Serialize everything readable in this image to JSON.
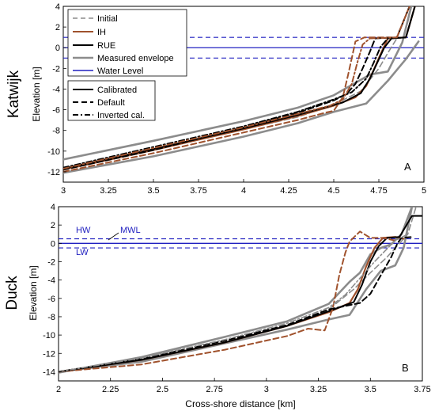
{
  "chart_data": [
    {
      "type": "line",
      "site": "Katwijk",
      "panel_label": "A",
      "ylabel": "Elevation [m]",
      "xlabel": "",
      "xlim": [
        3,
        5
      ],
      "ylim": [
        -13,
        4
      ],
      "xticks": [
        "3",
        "3.25",
        "3.5",
        "3.75",
        "4",
        "4.25",
        "4.5",
        "4.75",
        "5"
      ],
      "xtick_values": [
        3,
        3.25,
        3.5,
        3.75,
        4,
        4.25,
        4.5,
        4.75,
        5
      ],
      "yticks": [
        "4",
        "2",
        "0",
        "-2",
        "-4",
        "-6",
        "-8",
        "-10",
        "-12"
      ],
      "ytick_values": [
        4,
        2,
        0,
        -2,
        -4,
        -6,
        -8,
        -10,
        -12
      ],
      "water_levels": {
        "mwl": 0,
        "hw": 1,
        "lw": -1
      },
      "legend_groups": [
        [
          {
            "label": "Initial",
            "color": "#8c8c8c",
            "dash": "dashed"
          },
          {
            "label": "IH",
            "color": "#a0522d",
            "dash": "solid"
          },
          {
            "label": "RUE",
            "color": "#000000",
            "dash": "solid"
          },
          {
            "label": "Measured envelope",
            "color": "#8c8c8c",
            "dash": "solid"
          },
          {
            "label": "Water Level",
            "color": "#2020c0",
            "dash": "solid"
          }
        ],
        [
          {
            "label": "Calibrated",
            "color": "#000000",
            "dash": "solid"
          },
          {
            "label": "Default",
            "color": "#000000",
            "dash": "dashed"
          },
          {
            "label": "Inverted cal.",
            "color": "#000000",
            "dash": "dashdot"
          }
        ]
      ],
      "series": [
        {
          "color": "#8c8c8c",
          "width": 2.6,
          "dash": "solid",
          "points": [
            [
              3,
              -10.8
            ],
            [
              3.5,
              -9.0
            ],
            [
              4.0,
              -7.1
            ],
            [
              4.3,
              -5.8
            ],
            [
              4.5,
              -4.6
            ],
            [
              4.62,
              -3.4
            ],
            [
              4.7,
              -2.6
            ],
            [
              4.8,
              -2.3
            ],
            [
              4.88,
              0.5
            ],
            [
              4.93,
              4
            ]
          ]
        },
        {
          "color": "#8c8c8c",
          "width": 2.6,
          "dash": "solid",
          "points": [
            [
              3,
              -12.1
            ],
            [
              3.5,
              -10.5
            ],
            [
              4.0,
              -8.6
            ],
            [
              4.3,
              -7.3
            ],
            [
              4.5,
              -6.2
            ],
            [
              4.68,
              -5.4
            ],
            [
              4.8,
              -3.2
            ],
            [
              4.9,
              -1.1
            ],
            [
              4.97,
              0.6
            ]
          ]
        },
        {
          "color": "#8c8c8c",
          "width": 1.6,
          "dash": "dashed",
          "points": [
            [
              3,
              -11.7
            ],
            [
              3.5,
              -9.9
            ],
            [
              4.0,
              -7.9
            ],
            [
              4.3,
              -6.7
            ],
            [
              4.5,
              -5.5
            ],
            [
              4.65,
              -4.2
            ],
            [
              4.75,
              -2.0
            ],
            [
              4.8,
              -0.5
            ],
            [
              4.85,
              0.9
            ],
            [
              4.92,
              4
            ]
          ]
        },
        {
          "color": "#a0522d",
          "width": 2.2,
          "dash": "solid",
          "points": [
            [
              3,
              -11.8
            ],
            [
              3.5,
              -9.9
            ],
            [
              4.0,
              -7.9
            ],
            [
              4.3,
              -6.6
            ],
            [
              4.5,
              -5.6
            ],
            [
              4.62,
              -4.8
            ],
            [
              4.68,
              -3.7
            ],
            [
              4.72,
              -2.2
            ],
            [
              4.76,
              -0.6
            ],
            [
              4.8,
              0.9
            ],
            [
              4.9,
              1.0
            ],
            [
              4.95,
              4
            ]
          ]
        },
        {
          "color": "#000000",
          "width": 2.0,
          "dash": "solid",
          "points": [
            [
              3,
              -11.7
            ],
            [
              3.5,
              -9.8
            ],
            [
              4.0,
              -7.8
            ],
            [
              4.3,
              -6.5
            ],
            [
              4.55,
              -5.3
            ],
            [
              4.65,
              -4.4
            ],
            [
              4.7,
              -3.0
            ],
            [
              4.74,
              -1.5
            ],
            [
              4.78,
              0.0
            ],
            [
              4.82,
              0.9
            ],
            [
              4.9,
              1.0
            ],
            [
              4.95,
              4
            ]
          ]
        },
        {
          "color": "#a0522d",
          "width": 2.0,
          "dash": "dashed",
          "points": [
            [
              3,
              -12.0
            ],
            [
              3.5,
              -10.2
            ],
            [
              4.0,
              -8.2
            ],
            [
              4.3,
              -7.0
            ],
            [
              4.45,
              -6.3
            ],
            [
              4.5,
              -6.1
            ],
            [
              4.55,
              -4.8
            ],
            [
              4.58,
              -2.6
            ],
            [
              4.6,
              -1.0
            ],
            [
              4.62,
              0.6
            ],
            [
              4.67,
              1.0
            ],
            [
              4.85,
              1.0
            ],
            [
              4.92,
              4
            ]
          ]
        },
        {
          "color": "#000000",
          "width": 2.0,
          "dash": "dashed",
          "points": [
            [
              3,
              -11.8
            ],
            [
              3.5,
              -9.9
            ],
            [
              4.0,
              -7.7
            ],
            [
              4.3,
              -6.3
            ],
            [
              4.5,
              -5.1
            ],
            [
              4.57,
              -4.5
            ],
            [
              4.62,
              -3.5
            ],
            [
              4.66,
              -2.0
            ],
            [
              4.7,
              -0.4
            ],
            [
              4.73,
              0.9
            ],
            [
              4.85,
              1.0
            ],
            [
              4.92,
              4
            ]
          ]
        },
        {
          "color": "#000000",
          "width": 2.0,
          "dash": "dashdot",
          "points": [
            [
              3,
              -11.6
            ],
            [
              3.5,
              -9.6
            ],
            [
              4.0,
              -7.6
            ],
            [
              4.3,
              -6.2
            ],
            [
              4.5,
              -5.0
            ],
            [
              4.6,
              -4.3
            ],
            [
              4.68,
              -3.0
            ],
            [
              4.72,
              -1.5
            ],
            [
              4.76,
              0.1
            ],
            [
              4.8,
              0.9
            ],
            [
              4.9,
              1.0
            ],
            [
              4.95,
              4
            ]
          ]
        },
        {
          "color": "#a0522d",
          "width": 2.0,
          "dash": "dashdot",
          "points": [
            [
              3,
              -11.7
            ],
            [
              3.5,
              -9.7
            ],
            [
              4.0,
              -7.7
            ],
            [
              4.3,
              -6.4
            ],
            [
              4.48,
              -5.6
            ],
            [
              4.55,
              -5.0
            ],
            [
              4.6,
              -3.5
            ],
            [
              4.63,
              -1.5
            ],
            [
              4.66,
              0.3
            ],
            [
              4.7,
              0.9
            ],
            [
              4.85,
              1.0
            ],
            [
              4.92,
              4
            ]
          ]
        }
      ]
    },
    {
      "type": "line",
      "site": "Duck",
      "panel_label": "B",
      "ylabel": "Elevation [m]",
      "xlabel": "Cross-shore distance [km]",
      "xlim": [
        2,
        3.75
      ],
      "ylim": [
        -15,
        4
      ],
      "xticks": [
        "2",
        "2.25",
        "2.5",
        "2.75",
        "3",
        "3.25",
        "3.5",
        "3.75"
      ],
      "xtick_values": [
        2,
        2.25,
        2.5,
        2.75,
        3,
        3.25,
        3.5,
        3.75
      ],
      "yticks": [
        "4",
        "2",
        "0",
        "-2",
        "-4",
        "-6",
        "-8",
        "-10",
        "-12",
        "-14"
      ],
      "ytick_values": [
        4,
        2,
        0,
        -2,
        -4,
        -6,
        -8,
        -10,
        -12,
        -14
      ],
      "water_levels": {
        "mwl": 0,
        "hw": 0.5,
        "lw": -0.5
      },
      "annotations": {
        "hw": "HW",
        "mwl": "MWL",
        "lw": "LW"
      },
      "series": [
        {
          "color": "#8c8c8c",
          "width": 2.6,
          "dash": "solid",
          "points": [
            [
              2.0,
              -14.1
            ],
            [
              2.4,
              -12.4
            ],
            [
              2.8,
              -10.2
            ],
            [
              3.1,
              -8.5
            ],
            [
              3.3,
              -6.6
            ],
            [
              3.4,
              -4.2
            ],
            [
              3.45,
              -3.2
            ],
            [
              3.5,
              -1.2
            ],
            [
              3.55,
              -0.5
            ],
            [
              3.6,
              -0.1
            ],
            [
              3.65,
              1.0
            ],
            [
              3.7,
              4
            ]
          ]
        },
        {
          "color": "#8c8c8c",
          "width": 2.6,
          "dash": "solid",
          "points": [
            [
              2.0,
              -14.0
            ],
            [
              2.4,
              -12.9
            ],
            [
              2.8,
              -10.9
            ],
            [
              3.1,
              -9.4
            ],
            [
              3.3,
              -8.3
            ],
            [
              3.4,
              -7.8
            ],
            [
              3.48,
              -5.0
            ],
            [
              3.55,
              -3.0
            ],
            [
              3.62,
              -2.4
            ],
            [
              3.66,
              -0.5
            ],
            [
              3.7,
              4
            ]
          ]
        },
        {
          "color": "#8c8c8c",
          "width": 1.6,
          "dash": "dashed",
          "points": [
            [
              2.0,
              -14.0
            ],
            [
              2.4,
              -12.6
            ],
            [
              2.8,
              -10.6
            ],
            [
              3.1,
              -8.9
            ],
            [
              3.3,
              -7.2
            ],
            [
              3.42,
              -5.0
            ],
            [
              3.5,
              -3.2
            ],
            [
              3.58,
              -1.5
            ],
            [
              3.64,
              0.0
            ],
            [
              3.68,
              1.0
            ],
            [
              3.72,
              4
            ]
          ]
        },
        {
          "color": "#a0522d",
          "width": 2.2,
          "dash": "solid",
          "points": [
            [
              2.0,
              -14.0
            ],
            [
              2.4,
              -12.7
            ],
            [
              2.8,
              -10.8
            ],
            [
              3.1,
              -9.0
            ],
            [
              3.3,
              -7.5
            ],
            [
              3.4,
              -6.5
            ],
            [
              3.44,
              -5.0
            ],
            [
              3.48,
              -2.5
            ],
            [
              3.52,
              -0.5
            ],
            [
              3.56,
              0.6
            ],
            [
              3.62,
              0.7
            ],
            [
              3.66,
              0.5
            ]
          ]
        },
        {
          "color": "#000000",
          "width": 2.0,
          "dash": "solid",
          "points": [
            [
              2.0,
              -14.0
            ],
            [
              2.4,
              -12.7
            ],
            [
              2.8,
              -10.8
            ],
            [
              3.1,
              -9.0
            ],
            [
              3.3,
              -7.4
            ],
            [
              3.42,
              -6.4
            ],
            [
              3.46,
              -4.5
            ],
            [
              3.5,
              -2.0
            ],
            [
              3.54,
              -0.3
            ],
            [
              3.58,
              0.6
            ],
            [
              3.64,
              0.7
            ],
            [
              3.7,
              3.0
            ],
            [
              3.75,
              3.0
            ]
          ]
        },
        {
          "color": "#a0522d",
          "width": 2.0,
          "dash": "dashed",
          "points": [
            [
              2.0,
              -14.0
            ],
            [
              2.4,
              -13.2
            ],
            [
              2.8,
              -11.6
            ],
            [
              3.1,
              -10.1
            ],
            [
              3.2,
              -9.3
            ],
            [
              3.28,
              -9.5
            ],
            [
              3.32,
              -7.0
            ],
            [
              3.35,
              -3.5
            ],
            [
              3.38,
              -1.0
            ],
            [
              3.4,
              0.2
            ],
            [
              3.45,
              1.3
            ],
            [
              3.5,
              0.6
            ],
            [
              3.56,
              0.6
            ],
            [
              3.62,
              0.3
            ]
          ]
        },
        {
          "color": "#000000",
          "width": 2.0,
          "dash": "dashed",
          "points": [
            [
              2.0,
              -14.0
            ],
            [
              2.4,
              -12.6
            ],
            [
              2.8,
              -10.6
            ],
            [
              3.1,
              -8.9
            ],
            [
              3.3,
              -7.2
            ],
            [
              3.45,
              -6.5
            ],
            [
              3.5,
              -5.5
            ],
            [
              3.55,
              -3.5
            ],
            [
              3.6,
              -1.5
            ],
            [
              3.63,
              0.0
            ],
            [
              3.65,
              0.6
            ],
            [
              3.7,
              0.7
            ]
          ]
        },
        {
          "color": "#8c8c8c",
          "width": 1.6,
          "dash": "dashdot",
          "points": [
            [
              2.0,
              -14.0
            ],
            [
              2.4,
              -12.5
            ],
            [
              2.8,
              -10.5
            ],
            [
              3.1,
              -8.7
            ],
            [
              3.3,
              -7.0
            ],
            [
              3.38,
              -5.6
            ],
            [
              3.45,
              -3.8
            ],
            [
              3.52,
              -2.0
            ],
            [
              3.58,
              -0.6
            ],
            [
              3.62,
              0.3
            ],
            [
              3.68,
              1.0
            ]
          ]
        }
      ]
    }
  ]
}
